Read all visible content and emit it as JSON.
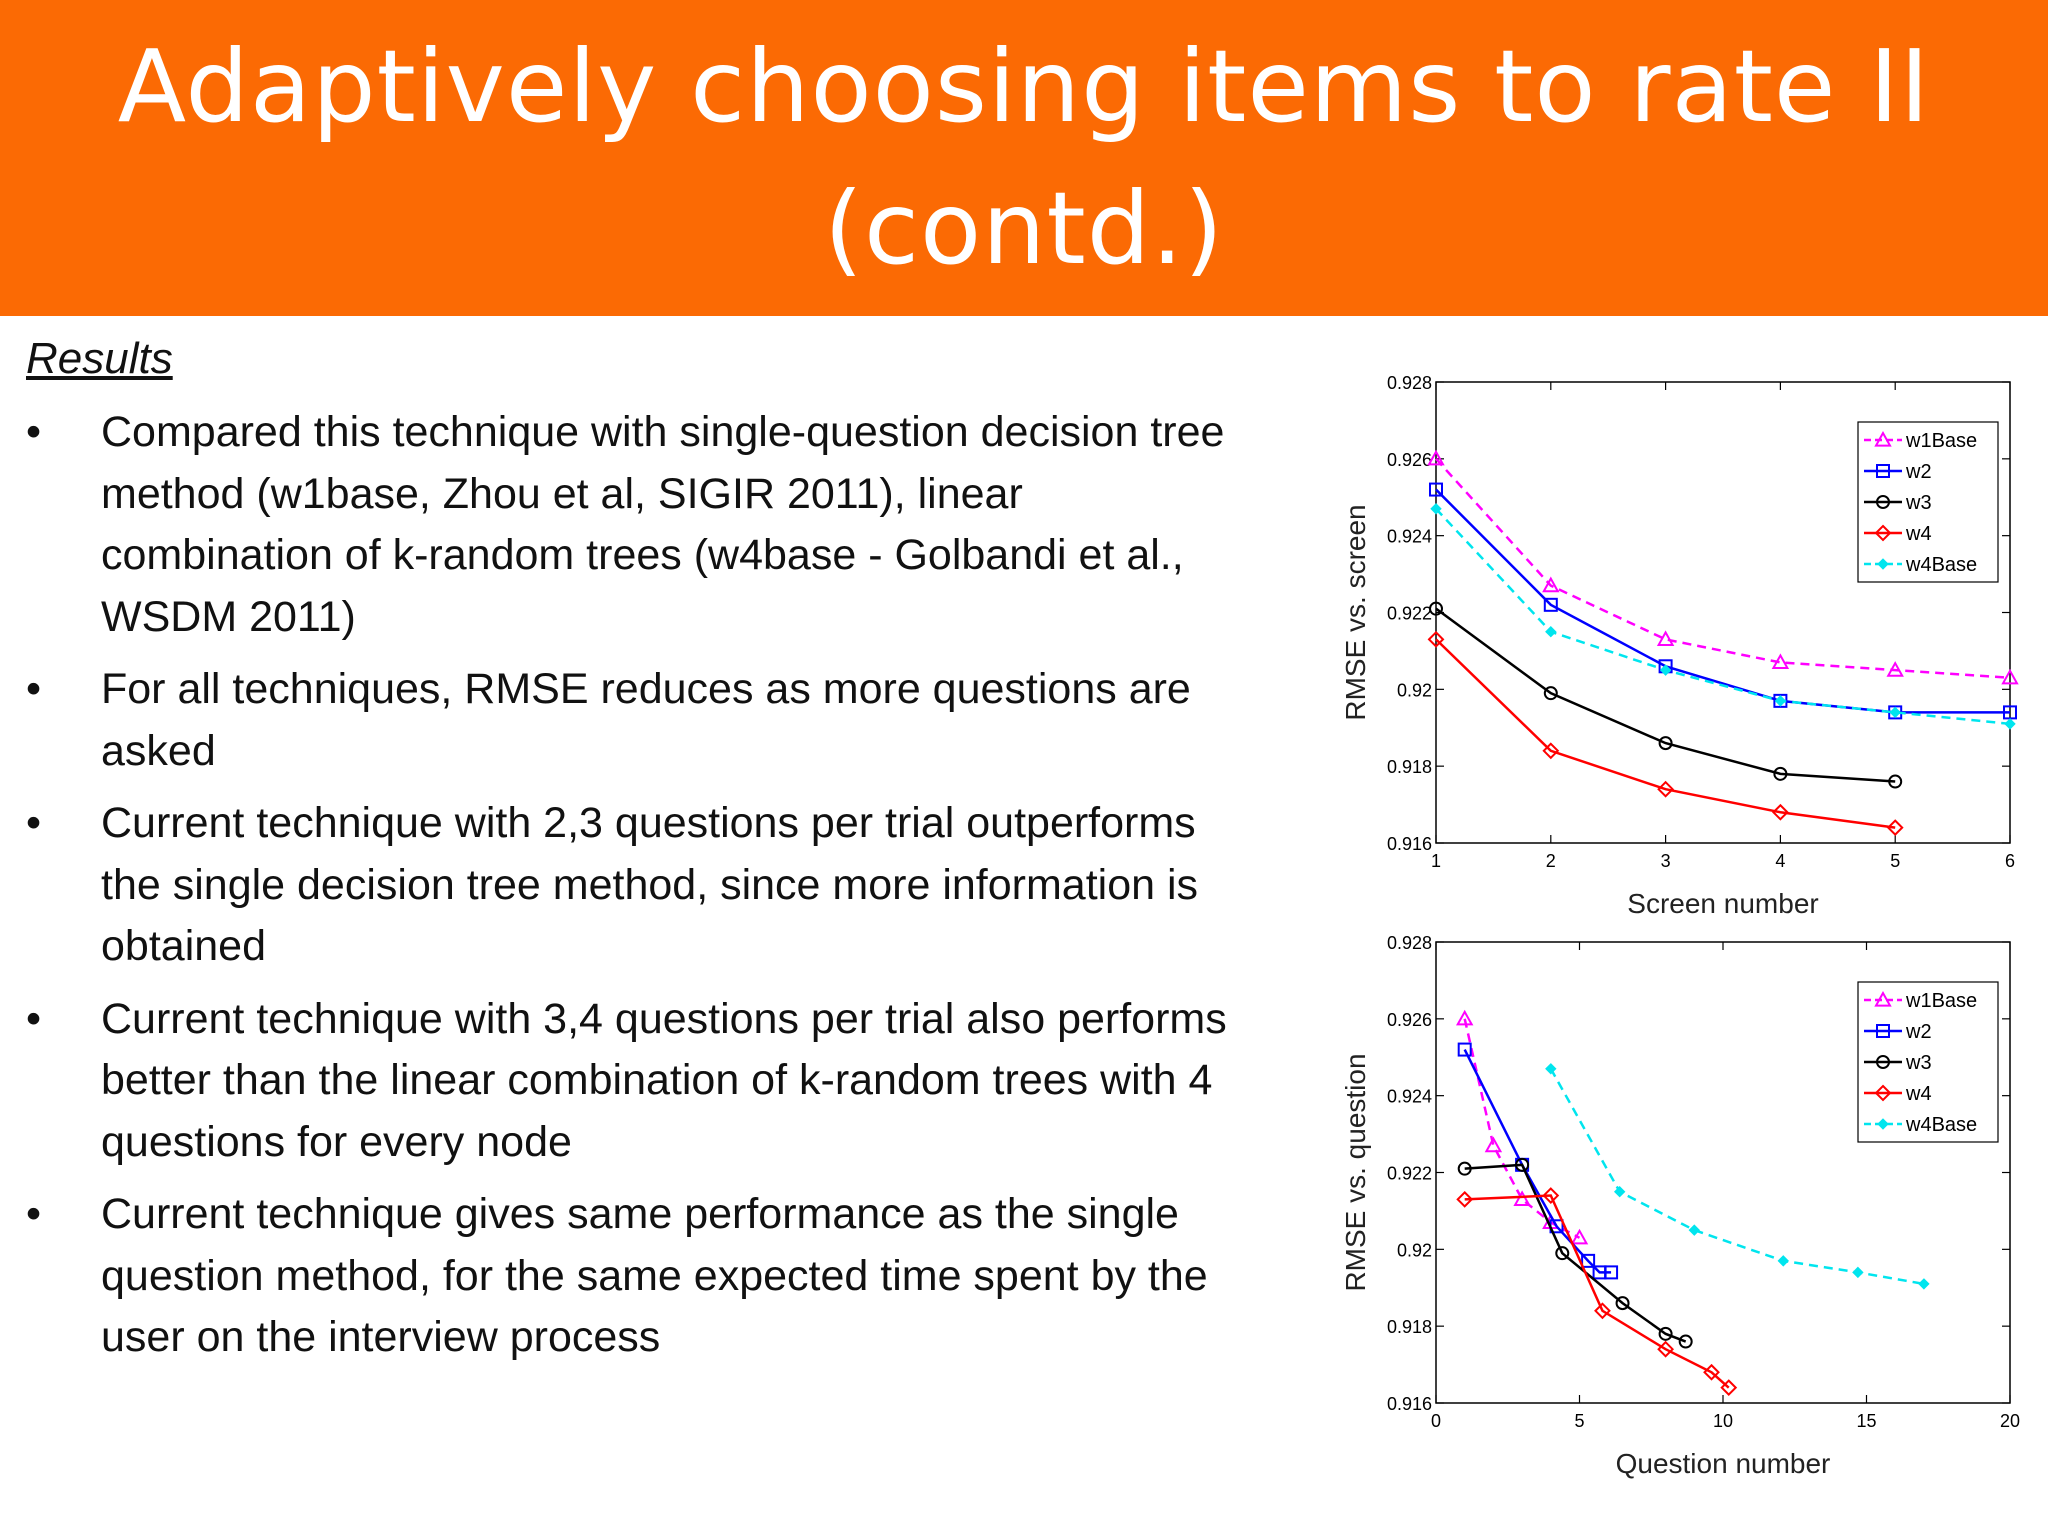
{
  "slide": {
    "title_line1": "Adaptively choosing items to rate II",
    "title_line2": "(contd.)",
    "results_heading": "Results",
    "bullet_symbol": "•",
    "bullets": [
      "Compared this technique with single-question decision tree method (w1base, Zhou et al, SIGIR 2011), linear combination of k-random trees (w4base - Golbandi et al., WSDM 2011)",
      "For all techniques, RMSE reduces as more questions are asked",
      "Current technique with 2,3 questions per trial outperforms the single decision tree method, since more information is obtained",
      "Current technique with 3,4 questions per trial also performs better than the linear combination of k-random trees with 4 questions for every node",
      "Current technique gives same performance as the single question method, for the same expected time spent by the user on the interview process"
    ]
  },
  "colors": {
    "header_background": "#fb6a04",
    "header_text": "#ffffff",
    "w1Base": "#ff00ff",
    "w2": "#0000ff",
    "w3": "#000000",
    "w4": "#ff0000",
    "w4Base": "#00e5ee"
  },
  "chart_data": [
    {
      "type": "line",
      "xlabel": "Screen number",
      "ylabel": "RMSE vs. screen",
      "xlim": [
        1,
        6
      ],
      "ylim": [
        0.916,
        0.928
      ],
      "xticks": [
        "1",
        "2",
        "3",
        "4",
        "5",
        "6"
      ],
      "yticks": [
        "0.916",
        "0.918",
        "0.92",
        "0.922",
        "0.924",
        "0.926",
        "0.928"
      ],
      "legend_position": "top-right",
      "series": [
        {
          "name": "w1Base",
          "marker": "triangle",
          "dash": true,
          "x": [
            1,
            2,
            3,
            4,
            5,
            6
          ],
          "y": [
            0.926,
            0.9227,
            0.9213,
            0.9207,
            0.9205,
            0.9203
          ]
        },
        {
          "name": "w2",
          "marker": "square",
          "dash": false,
          "x": [
            1,
            2,
            3,
            4,
            5,
            6
          ],
          "y": [
            0.9252,
            0.9222,
            0.9206,
            0.9197,
            0.9194,
            0.9194
          ]
        },
        {
          "name": "w3",
          "marker": "circle",
          "dash": false,
          "x": [
            1,
            2,
            3,
            4,
            5
          ],
          "y": [
            0.9221,
            0.9199,
            0.9186,
            0.9178,
            0.9176
          ]
        },
        {
          "name": "w4",
          "marker": "diamond",
          "dash": false,
          "x": [
            1,
            2,
            3,
            4,
            5
          ],
          "y": [
            0.9213,
            0.9184,
            0.9174,
            0.9168,
            0.9164
          ]
        },
        {
          "name": "w4Base",
          "marker": "star",
          "dash": true,
          "x": [
            1,
            2,
            3,
            4,
            5,
            6
          ],
          "y": [
            0.9247,
            0.9215,
            0.9205,
            0.9197,
            0.9194,
            0.9191
          ]
        }
      ]
    },
    {
      "type": "line",
      "xlabel": "Question number",
      "ylabel": "RMSE vs. question",
      "xlim": [
        0,
        20
      ],
      "ylim": [
        0.916,
        0.928
      ],
      "xticks": [
        "0",
        "5",
        "10",
        "15",
        "20"
      ],
      "yticks": [
        "0.916",
        "0.918",
        "0.92",
        "0.922",
        "0.924",
        "0.926",
        "0.928"
      ],
      "legend_position": "top-right",
      "series": [
        {
          "name": "w1Base",
          "marker": "triangle",
          "dash": true,
          "x": [
            1,
            2,
            3,
            4,
            5
          ],
          "y": [
            0.926,
            0.9227,
            0.9213,
            0.9207,
            0.9203
          ]
        },
        {
          "name": "w2",
          "marker": "square",
          "dash": false,
          "x": [
            1,
            3,
            4.2,
            5.3,
            5.7,
            6.1
          ],
          "y": [
            0.9252,
            0.9222,
            0.9206,
            0.9197,
            0.9194,
            0.9194
          ]
        },
        {
          "name": "w3",
          "marker": "circle",
          "dash": false,
          "x": [
            1,
            3,
            4.4,
            6.5,
            8,
            8.7
          ],
          "y": [
            0.9221,
            0.9222,
            0.9199,
            0.9186,
            0.9178,
            0.9176
          ]
        },
        {
          "name": "w4",
          "marker": "diamond",
          "dash": false,
          "x": [
            1,
            4,
            5.8,
            8,
            9.6,
            10.2
          ],
          "y": [
            0.9213,
            0.9214,
            0.9184,
            0.9174,
            0.9168,
            0.9164
          ]
        },
        {
          "name": "w4Base",
          "marker": "star",
          "dash": true,
          "x": [
            4,
            6.4,
            9,
            12.1,
            14.7,
            17
          ],
          "y": [
            0.9247,
            0.9215,
            0.9205,
            0.9197,
            0.9194,
            0.9191
          ]
        }
      ]
    }
  ]
}
